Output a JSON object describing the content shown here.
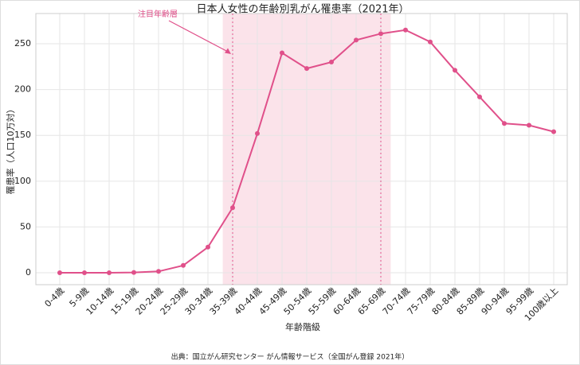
{
  "chart_data": {
    "type": "line",
    "title": "日本人女性の年齢別乳がん罹患率（2021年）",
    "xlabel": "年齢階級",
    "ylabel": "罹患率（人口10万対）",
    "source": "出典：国立がん研究センター がん情報サービス（全国がん登録 2021年）",
    "categories": [
      "0-4歳",
      "5-9歳",
      "10-14歳",
      "15-19歳",
      "20-24歳",
      "25-29歳",
      "30-34歳",
      "35-39歳",
      "40-44歳",
      "45-49歳",
      "50-54歳",
      "55-59歳",
      "60-64歳",
      "65-69歳",
      "70-74歳",
      "75-79歳",
      "80-84歳",
      "85-89歳",
      "90-94歳",
      "95-99歳",
      "100歳以上"
    ],
    "values": [
      0,
      0,
      0,
      0.3,
      1.5,
      8,
      28,
      71,
      152,
      240,
      223,
      230,
      254,
      261,
      265,
      252,
      221,
      192,
      163,
      161,
      154
    ],
    "color": "#e0508a",
    "ylim": [
      -13,
      283
    ],
    "yticks": [
      0,
      50,
      100,
      150,
      200,
      250
    ],
    "grid": true,
    "highlight": {
      "label": "注目年齢層",
      "from": "35-39歳",
      "to": "65-69歳",
      "color": "#fbe3ea"
    }
  }
}
